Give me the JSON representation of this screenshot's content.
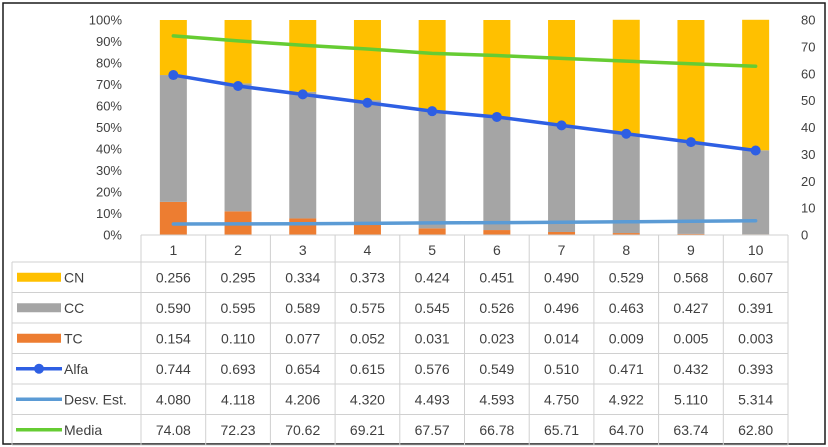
{
  "chart_data": {
    "type": "bar",
    "title": "",
    "categories": [
      "1",
      "2",
      "3",
      "4",
      "5",
      "6",
      "7",
      "8",
      "9",
      "10"
    ],
    "stacked_percent": true,
    "y_left": {
      "ticks": [
        "0%",
        "10%",
        "20%",
        "30%",
        "40%",
        "50%",
        "60%",
        "70%",
        "80%",
        "90%",
        "100%"
      ],
      "range": [
        0,
        1
      ]
    },
    "y_right": {
      "ticks": [
        "0",
        "10",
        "20",
        "30",
        "40",
        "50",
        "60",
        "70",
        "80"
      ],
      "range": [
        0,
        80
      ]
    },
    "grid": false,
    "legend": "data-table",
    "series": [
      {
        "name": "CN",
        "type": "bar",
        "color": "#FFC000",
        "axis": "left",
        "values": [
          0.256,
          0.295,
          0.334,
          0.373,
          0.424,
          0.451,
          0.49,
          0.529,
          0.568,
          0.607
        ],
        "labels": [
          "0.256",
          "0.295",
          "0.334",
          "0.373",
          "0.424",
          "0.451",
          "0.490",
          "0.529",
          "0.568",
          "0.607"
        ]
      },
      {
        "name": "CC",
        "type": "bar",
        "color": "#A5A5A5",
        "axis": "left",
        "values": [
          0.59,
          0.595,
          0.589,
          0.575,
          0.545,
          0.526,
          0.496,
          0.463,
          0.427,
          0.391
        ],
        "labels": [
          "0.590",
          "0.595",
          "0.589",
          "0.575",
          "0.545",
          "0.526",
          "0.496",
          "0.463",
          "0.427",
          "0.391"
        ]
      },
      {
        "name": "TC",
        "type": "bar",
        "color": "#ED7D31",
        "axis": "left",
        "values": [
          0.154,
          0.11,
          0.077,
          0.052,
          0.031,
          0.023,
          0.014,
          0.009,
          0.005,
          0.003
        ],
        "labels": [
          "0.154",
          "0.110",
          "0.077",
          "0.052",
          "0.031",
          "0.023",
          "0.014",
          "0.009",
          "0.005",
          "0.003"
        ]
      },
      {
        "name": "Alfa",
        "type": "line-marker",
        "color": "#2E5FE3",
        "axis": "left",
        "values": [
          0.744,
          0.693,
          0.654,
          0.615,
          0.576,
          0.549,
          0.51,
          0.471,
          0.432,
          0.393
        ],
        "labels": [
          "0.744",
          "0.693",
          "0.654",
          "0.615",
          "0.576",
          "0.549",
          "0.510",
          "0.471",
          "0.432",
          "0.393"
        ]
      },
      {
        "name": "Desv. Est.",
        "type": "line",
        "color": "#5B9BD5",
        "axis": "right",
        "values": [
          4.08,
          4.118,
          4.206,
          4.32,
          4.493,
          4.593,
          4.75,
          4.922,
          5.11,
          5.314
        ],
        "labels": [
          "4.080",
          "4.118",
          "4.206",
          "4.320",
          "4.493",
          "4.593",
          "4.750",
          "4.922",
          "5.110",
          "5.314"
        ]
      },
      {
        "name": "Media",
        "type": "line",
        "color": "#66CC33",
        "axis": "right",
        "values": [
          74.08,
          72.23,
          70.62,
          69.21,
          67.57,
          66.78,
          65.71,
          64.7,
          63.74,
          62.8
        ],
        "labels": [
          "74.08",
          "72.23",
          "70.62",
          "69.21",
          "67.57",
          "66.78",
          "65.71",
          "64.70",
          "63.74",
          "62.80"
        ]
      }
    ]
  }
}
